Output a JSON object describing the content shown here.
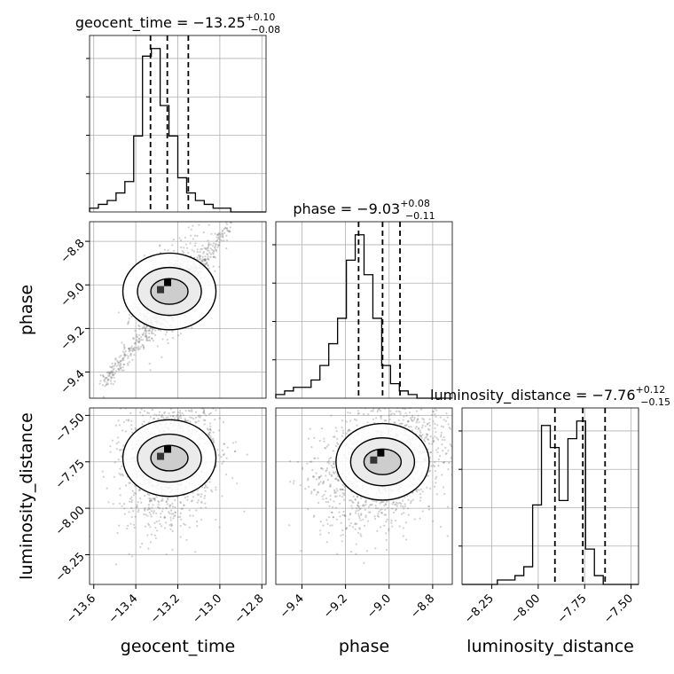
{
  "chart_data": {
    "type": "corner",
    "params": [
      "geocent_time",
      "phase",
      "luminosity_distance"
    ],
    "titles": [
      {
        "label": "geocent_time",
        "median": "−13.25",
        "plus": "+0.10",
        "minus": "−0.08"
      },
      {
        "label": "phase",
        "median": "−9.03",
        "plus": "+0.08",
        "minus": "−0.11"
      },
      {
        "label": "luminosity_distance",
        "median": "−7.76",
        "plus": "+0.12",
        "minus": "−0.15"
      }
    ],
    "axis_labels": [
      "geocent_time",
      "phase",
      "luminosity_distance"
    ],
    "ranges": [
      [
        -13.62,
        -12.78
      ],
      [
        -9.52,
        -8.71
      ],
      [
        -8.41,
        -7.46
      ]
    ],
    "ticks": [
      {
        "values": [
          -13.6,
          -13.4,
          -13.2,
          -13.0,
          -12.8
        ],
        "labels": [
          "−13.6",
          "−13.4",
          "−13.2",
          "−13.0",
          "−12.8"
        ]
      },
      {
        "values": [
          -9.4,
          -9.2,
          -9.0,
          -8.8
        ],
        "labels": [
          "−9.4",
          "−9.2",
          "−9.0",
          "−8.8"
        ]
      },
      {
        "values": [
          -8.25,
          -8.0,
          -7.75,
          -7.5
        ],
        "labels": [
          "−8.25",
          "−8.00",
          "−7.75",
          "−7.50"
        ]
      }
    ],
    "quantiles": [
      [
        -13.33,
        -13.25,
        -13.15
      ],
      [
        -9.14,
        -9.03,
        -8.95
      ],
      [
        -7.91,
        -7.76,
        -7.64
      ]
    ],
    "histograms": [
      {
        "bins": 20,
        "counts": [
          1,
          2,
          3,
          5,
          8,
          20,
          41,
          43,
          28,
          20,
          9,
          5,
          3,
          2,
          1,
          1,
          0,
          0,
          0,
          0
        ]
      },
      {
        "bins": 20,
        "counts": [
          1,
          2,
          3,
          3,
          5,
          9,
          15,
          22,
          38,
          45,
          34,
          22,
          9,
          4,
          2,
          1,
          0,
          0,
          0,
          0
        ]
      },
      {
        "bins": 20,
        "counts": [
          0,
          0,
          0,
          0,
          1,
          1,
          2,
          4,
          18,
          36,
          31,
          19,
          33,
          37,
          8,
          2,
          0,
          0,
          0,
          0
        ]
      }
    ],
    "grid": true
  }
}
